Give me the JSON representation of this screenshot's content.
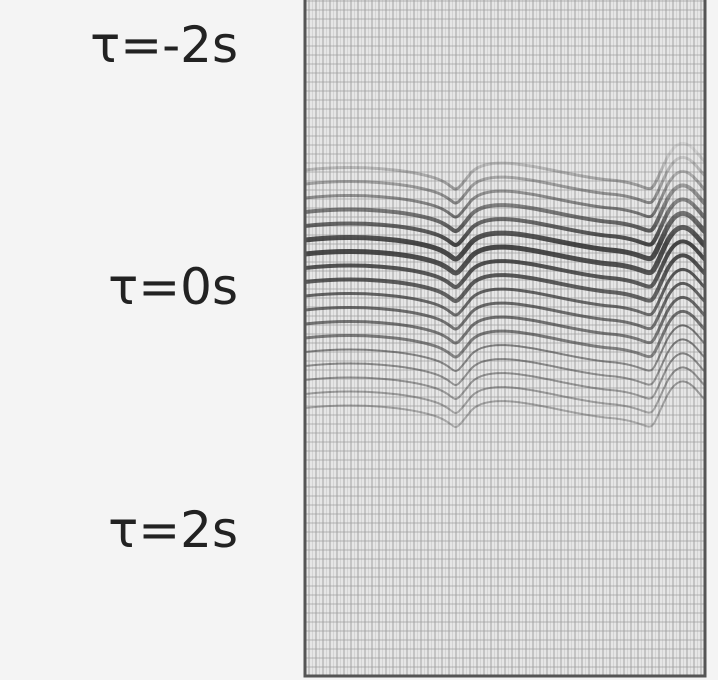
{
  "labels": [
    "τ=-2s",
    "τ=0s",
    "τ=2s"
  ]
}
